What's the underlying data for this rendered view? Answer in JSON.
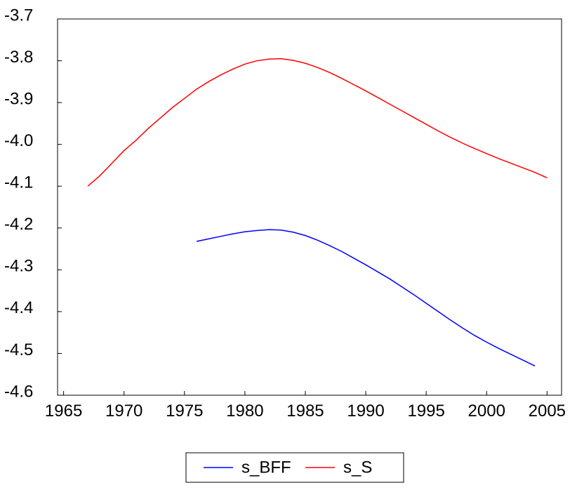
{
  "chart_data": {
    "type": "line",
    "x": [
      1967,
      1968,
      1969,
      1970,
      1971,
      1972,
      1973,
      1974,
      1975,
      1976,
      1977,
      1978,
      1979,
      1980,
      1981,
      1982,
      1983,
      1984,
      1985,
      1986,
      1987,
      1988,
      1989,
      1990,
      1991,
      1992,
      1993,
      1994,
      1995,
      1996,
      1997,
      1998,
      1999,
      2000,
      2001,
      2002,
      2003,
      2004,
      2005
    ],
    "series": [
      {
        "name": "s_BFF",
        "color": "#0000ff",
        "values": [
          null,
          null,
          null,
          null,
          null,
          null,
          null,
          null,
          null,
          -4.232,
          -4.226,
          -4.22,
          -4.214,
          -4.209,
          -4.206,
          -4.204,
          -4.205,
          -4.21,
          -4.218,
          -4.229,
          -4.242,
          -4.256,
          -4.272,
          -4.288,
          -4.305,
          -4.322,
          -4.341,
          -4.36,
          -4.38,
          -4.4,
          -4.42,
          -4.439,
          -4.457,
          -4.473,
          -4.488,
          -4.502,
          -4.516,
          -4.53,
          null
        ]
      },
      {
        "name": "s_S",
        "color": "#ff0000",
        "values": [
          -4.1,
          -4.075,
          -4.045,
          -4.015,
          -3.99,
          -3.962,
          -3.937,
          -3.912,
          -3.89,
          -3.868,
          -3.85,
          -3.834,
          -3.82,
          -3.808,
          -3.8,
          -3.796,
          -3.795,
          -3.799,
          -3.806,
          -3.816,
          -3.828,
          -3.842,
          -3.857,
          -3.872,
          -3.888,
          -3.904,
          -3.92,
          -3.936,
          -3.952,
          -3.968,
          -3.983,
          -3.997,
          -4.01,
          -4.022,
          -4.034,
          -4.045,
          -4.056,
          -4.067,
          -4.08
        ]
      }
    ],
    "xlim": [
      1964.5,
      2006.2
    ],
    "xticks": [
      1965,
      1970,
      1975,
      1980,
      1985,
      1990,
      1995,
      2000,
      2005
    ],
    "ylim": [
      -4.6,
      -3.7
    ],
    "yticks": [
      -3.7,
      -3.8,
      -3.9,
      {
        "value": -4,
        "label": "-4.0"
      },
      -4.1,
      -4.2,
      -4.3,
      -4.4,
      -4.5,
      -4.6
    ]
  }
}
